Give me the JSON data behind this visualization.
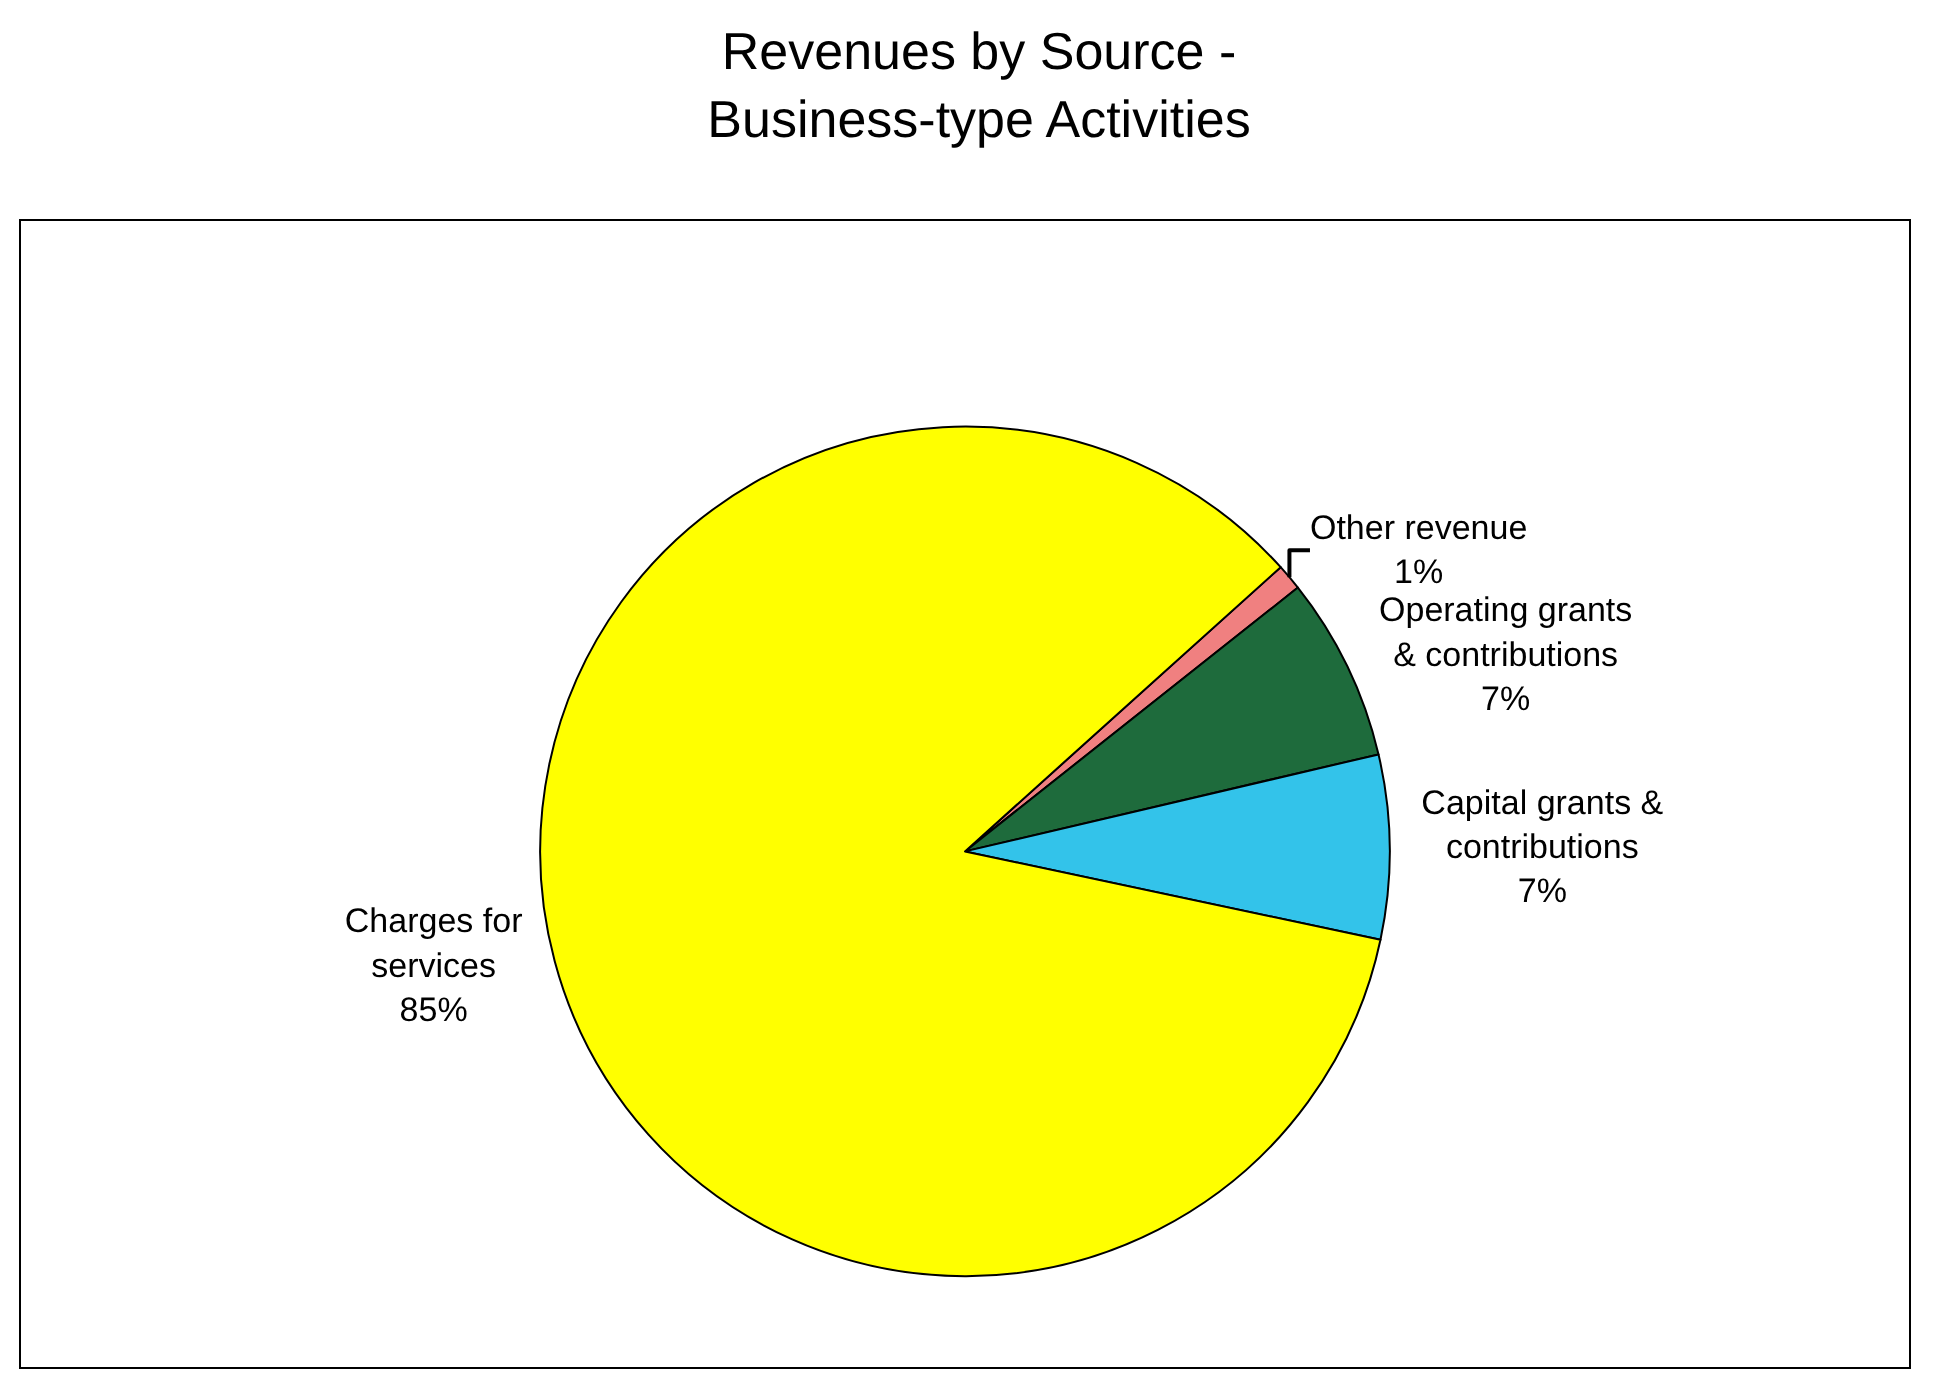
{
  "chart_data": {
    "type": "pie",
    "title": "Revenues by Source -\nBusiness-type Activities",
    "categories": [
      "Other revenue",
      "Operating grants & contributions",
      "Capital grants & contributions",
      "Charges for services"
    ],
    "values": [
      1,
      7,
      7,
      85
    ],
    "colors": [
      "#f08080",
      "#1e6b3c",
      "#33c3ea",
      "#ffff00"
    ],
    "value_labels": [
      "1%",
      "7%",
      "7%",
      "85%"
    ],
    "legend": false
  }
}
